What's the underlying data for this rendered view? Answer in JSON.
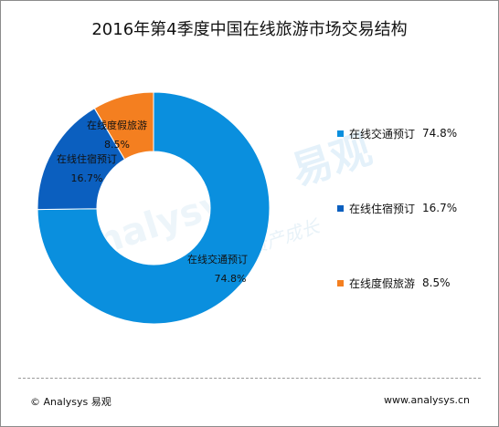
{
  "title": "2016年第4季度中国在线旅游市场交易结构",
  "watermark": {
    "brand_cn": "易观",
    "brand_en": "Analysys",
    "slogan": "实时分析驱动用户资产成长"
  },
  "footer": {
    "copyright": "© Analysys 易观",
    "website": "www.analysys.cn"
  },
  "colors": {
    "transport": "#0a8fde",
    "hotel": "#0b5fbf",
    "vacation": "#f47f20"
  },
  "chart_data": {
    "type": "pie",
    "style": "donut",
    "title": "2016年第4季度中国在线旅游市场交易结构",
    "legend_position": "right",
    "slices": [
      {
        "name": "在线交通预订",
        "value": 74.8,
        "label": "74.8%",
        "color": "#0a8fde"
      },
      {
        "name": "在线住宿预订",
        "value": 16.7,
        "label": "16.7%",
        "color": "#0b5fbf"
      },
      {
        "name": "在线度假旅游",
        "value": 8.5,
        "label": "8.5%",
        "color": "#f47f20"
      }
    ]
  }
}
